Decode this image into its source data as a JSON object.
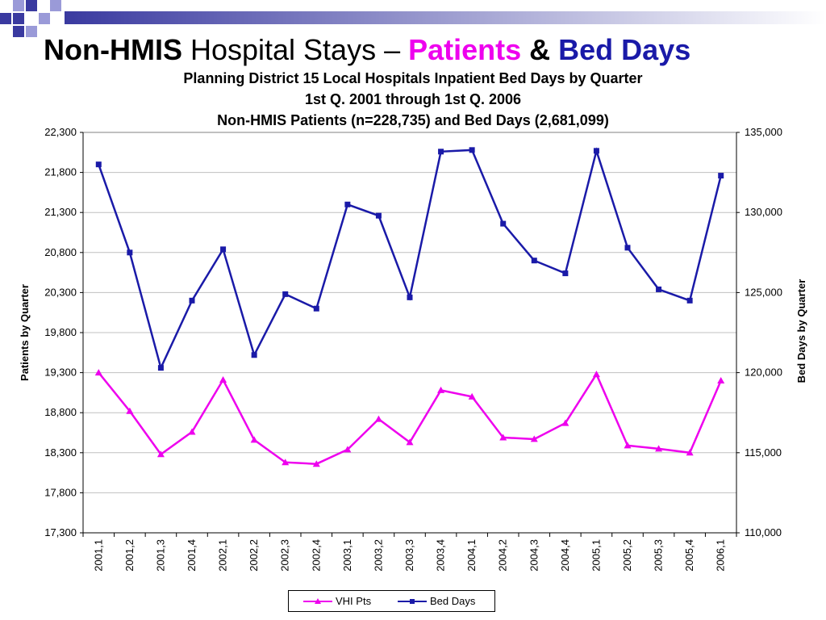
{
  "slide": {
    "title_part1": "Non-HMIS",
    "title_part2": " Hospital Stays – ",
    "title_part3": "Patients",
    "title_part4": " & ",
    "title_part5": "Bed Days"
  },
  "colors": {
    "patients": "#ee00ee",
    "bed_days": "#1a1aa8",
    "deco_square": "#3a3aa0",
    "deco_square_light": "#9a9ad8"
  },
  "chart_data": {
    "type": "line",
    "title": "Planning District 15 Local Hospitals Inpatient Bed Days by Quarter",
    "subtitle": "1st Q. 2001 through 1st Q. 2006",
    "subtitle2": "Non-HMIS Patients (n=228,735) and Bed Days (2,681,099)",
    "xlabel": "",
    "ylabel": "Patients by Quarter",
    "y2label": "Bed Days by Quarter",
    "ylim": [
      17300,
      22300
    ],
    "y2lim": [
      110000,
      135000
    ],
    "yticks": [
      "22,300",
      "21,800",
      "21,300",
      "20,800",
      "20,300",
      "19,800",
      "19,300",
      "18,800",
      "18,300",
      "17,800",
      "17,300"
    ],
    "y2ticks": [
      "135,000",
      "130,000",
      "125,000",
      "120,000",
      "115,000",
      "110,000"
    ],
    "grid": true,
    "legend": "bottom",
    "categories": [
      "2001,1",
      "2001,2",
      "2001,3",
      "2001,4",
      "2002,1",
      "2002,2",
      "2002,3",
      "2002,4",
      "2003,1",
      "2003,2",
      "2003,3",
      "2003,4",
      "2004,1",
      "2004,2",
      "2004,3",
      "2004,4",
      "2005,1",
      "2005,2",
      "2005,3",
      "2005,4",
      "2006,1"
    ],
    "series": [
      {
        "name": "VHI Pts",
        "axis": "left",
        "marker": "triangle",
        "values": [
          19300,
          18820,
          18280,
          18560,
          19210,
          18460,
          18180,
          18160,
          18340,
          18720,
          18430,
          19080,
          19000,
          18490,
          18470,
          18670,
          19280,
          18390,
          18350,
          18300,
          19200
        ]
      },
      {
        "name": "Bed Days",
        "axis": "right",
        "marker": "square",
        "values": [
          133000,
          127500,
          120300,
          124500,
          127700,
          121100,
          124900,
          124000,
          130500,
          129800,
          124700,
          133800,
          133900,
          129300,
          127000,
          126200,
          133850,
          127800,
          125200,
          124500,
          132300
        ]
      }
    ]
  }
}
